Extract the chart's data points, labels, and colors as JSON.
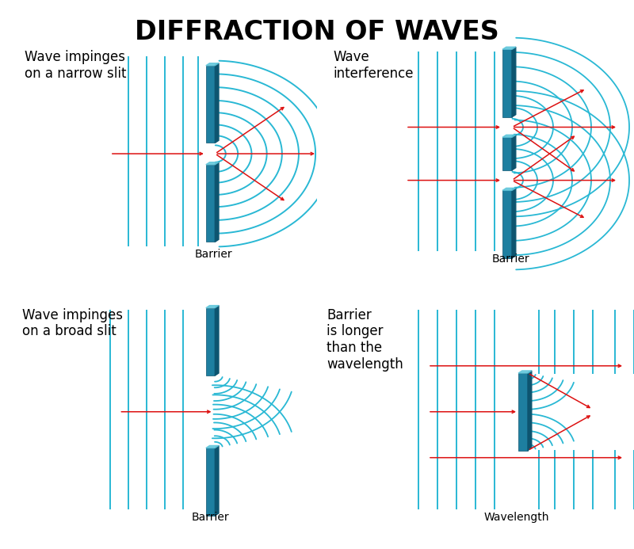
{
  "title": "DIFFRACTION OF WAVES",
  "title_fontsize": 24,
  "title_weight": "bold",
  "bg_color": "#ffffff",
  "wave_color": "#29b8d4",
  "barrier_face": "#1e7fa0",
  "barrier_side": "#0d5570",
  "barrier_top": "#5dc5da",
  "arrow_color": "#dd1111",
  "text_color": "#000000",
  "label_fontsize": 12,
  "panel_labels": [
    "Wave impinges\non a narrow slit",
    "Wave\ninterference",
    "Wave impinges\non a broad slit",
    "Barrier\nis longer\nthan the\nwavelength"
  ],
  "bottom_labels": [
    "Barrier",
    "Barrier",
    "Barrier",
    "Wavelength"
  ]
}
